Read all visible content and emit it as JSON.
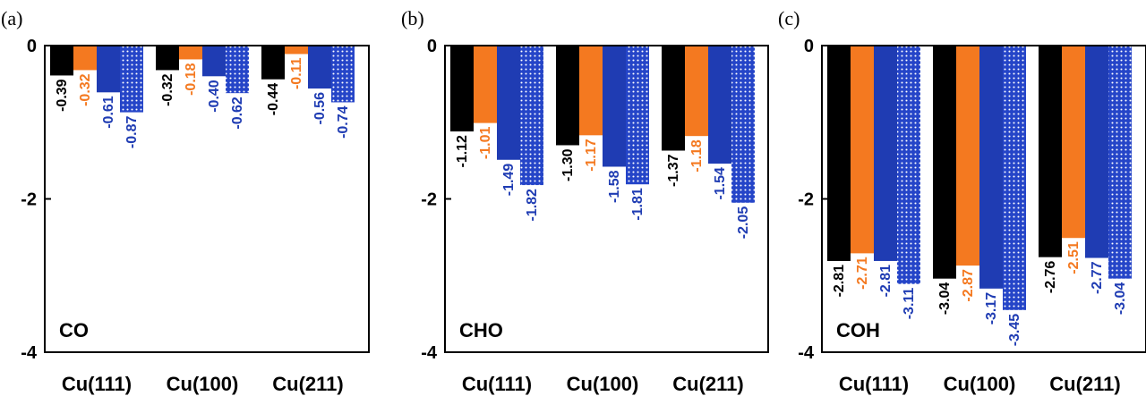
{
  "colors": {
    "series": [
      "#000000",
      "#f47920",
      "#1f3cb3",
      "#2545c8"
    ],
    "label_colors": [
      "#000000",
      "#f47920",
      "#1f3cb3",
      "#1f3cb3"
    ],
    "pattern_dot": "#ffffff",
    "axis": "#000000"
  },
  "chart_data": [
    {
      "type": "bar",
      "panel_label": "(a)",
      "inset_label": "CO",
      "categories": [
        "Cu(111)",
        "Cu(100)",
        "Cu(211)"
      ],
      "ylim": [
        -4,
        0
      ],
      "yticks": [
        "0",
        "-2",
        "-4"
      ],
      "grid": false,
      "series": [
        {
          "values": [
            -0.39,
            -0.32,
            -0.44
          ],
          "labels": [
            "-0.39",
            "-0.32",
            "-0.44"
          ]
        },
        {
          "values": [
            -0.32,
            -0.18,
            -0.11
          ],
          "labels": [
            "-0.32",
            "-0.18",
            "-0.11"
          ]
        },
        {
          "values": [
            -0.61,
            -0.4,
            -0.56
          ],
          "labels": [
            "-0.61",
            "-0.40",
            "-0.56"
          ]
        },
        {
          "values": [
            -0.87,
            -0.62,
            -0.74
          ],
          "labels": [
            "-0.87",
            "-0.62",
            "-0.74"
          ],
          "pattern": "dotted"
        }
      ]
    },
    {
      "type": "bar",
      "panel_label": "(b)",
      "inset_label": "CHO",
      "categories": [
        "Cu(111)",
        "Cu(100)",
        "Cu(211)"
      ],
      "ylim": [
        -4,
        0
      ],
      "yticks": [
        "0",
        "-2",
        "-4"
      ],
      "grid": false,
      "series": [
        {
          "values": [
            -1.12,
            -1.3,
            -1.37
          ],
          "labels": [
            "-1.12",
            "-1.30",
            "-1.37"
          ]
        },
        {
          "values": [
            -1.01,
            -1.17,
            -1.18
          ],
          "labels": [
            "-1.01",
            "-1.17",
            "-1.18"
          ]
        },
        {
          "values": [
            -1.49,
            -1.58,
            -1.54
          ],
          "labels": [
            "-1.49",
            "-1.58",
            "-1.54"
          ]
        },
        {
          "values": [
            -1.82,
            -1.81,
            -2.05
          ],
          "labels": [
            "-1.82",
            "-1.81",
            "-2.05"
          ],
          "pattern": "dotted"
        }
      ]
    },
    {
      "type": "bar",
      "panel_label": "(c)",
      "inset_label": "COH",
      "categories": [
        "Cu(111)",
        "Cu(100)",
        "Cu(211)"
      ],
      "ylim": [
        -4,
        0
      ],
      "yticks": [
        "0",
        "-2",
        "-4"
      ],
      "grid": false,
      "series": [
        {
          "values": [
            -2.81,
            -3.04,
            -2.76
          ],
          "labels": [
            "-2.81",
            "-3.04",
            "-2.76"
          ]
        },
        {
          "values": [
            -2.71,
            -2.87,
            -2.51
          ],
          "labels": [
            "-2.71",
            "-2.87",
            "-2.51"
          ]
        },
        {
          "values": [
            -2.81,
            -3.17,
            -2.77
          ],
          "labels": [
            "-2.81",
            "-3.17",
            "-2.77"
          ]
        },
        {
          "values": [
            -3.11,
            -3.45,
            -3.04
          ],
          "labels": [
            "-3.11",
            "-3.45",
            "-3.04"
          ],
          "pattern": "dotted"
        }
      ]
    }
  ]
}
